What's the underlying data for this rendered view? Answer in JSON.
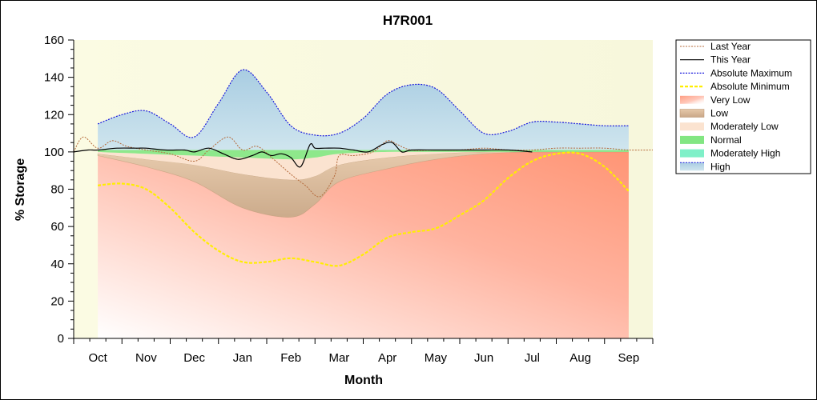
{
  "chart_data": {
    "type": "line",
    "title": "H7R001",
    "xlabel": "Month",
    "ylabel": "% Storage",
    "ylim": [
      0,
      160
    ],
    "yticks": [
      "0",
      "20",
      "40",
      "60",
      "80",
      "100",
      "120",
      "140",
      "160"
    ],
    "categories": [
      "Oct",
      "Nov",
      "Dec",
      "Jan",
      "Feb",
      "Mar",
      "Apr",
      "May",
      "Jun",
      "Jul",
      "Aug",
      "Sep"
    ],
    "x_range": [
      -0.5,
      11.5
    ],
    "legend_position": "right",
    "grid": false,
    "colors": {
      "plot_background": "#fbfbe6",
      "last_year": "#b4693a",
      "this_year": "#000000",
      "absolute_maximum": "#1a1adc",
      "absolute_minimum": "#ffee00",
      "very_low": "#ff9e85",
      "low": "#d2b496",
      "moderately_low": "#fbe3d0",
      "normal": "#82e682",
      "moderately_high": "#7ff0c8",
      "high": "#b4d7ea"
    },
    "series": [
      {
        "name": "Last Year",
        "x": [
          -0.5,
          -0.3,
          0.0,
          0.3,
          0.6,
          1.0,
          1.5,
          2.0,
          2.3,
          2.7,
          3.0,
          3.3,
          3.6,
          4.0,
          4.3,
          4.6,
          4.9,
          5.0,
          5.3,
          5.7,
          6.0,
          6.2,
          6.5,
          7.0,
          7.5,
          8.0,
          8.5,
          9.0,
          9.5,
          10.0,
          10.5,
          11.0,
          11.5
        ],
        "values": [
          100,
          108,
          102,
          106,
          103,
          101,
          99,
          95,
          101,
          108,
          101,
          103,
          97,
          88,
          82,
          76,
          87,
          98,
          98,
          100,
          106,
          104,
          101,
          101,
          101,
          102,
          101,
          101,
          102,
          102,
          102,
          101,
          101
        ]
      },
      {
        "name": "This Year",
        "x": [
          -0.5,
          -0.2,
          0.0,
          0.4,
          0.8,
          1.0,
          1.4,
          1.8,
          2.0,
          2.3,
          2.6,
          2.9,
          3.2,
          3.4,
          3.6,
          3.8,
          4.0,
          4.2,
          4.4,
          4.5,
          4.7,
          5.0,
          5.3,
          5.6,
          5.9,
          6.1,
          6.3,
          6.5,
          7.0,
          7.5,
          8.0,
          8.5,
          9.0
        ],
        "values": [
          100,
          101,
          101,
          102,
          102,
          102,
          101,
          101,
          100,
          102,
          99,
          96,
          98,
          100,
          98,
          99,
          97,
          92,
          104,
          102,
          102,
          102,
          101,
          100,
          104,
          105,
          100,
          101,
          101,
          101,
          101,
          101,
          100
        ]
      },
      {
        "name": "Absolute Maximum",
        "x": [
          0,
          0.5,
          1.0,
          1.5,
          2.0,
          2.5,
          3.0,
          3.5,
          4.0,
          4.5,
          5.0,
          5.5,
          6.0,
          6.5,
          7.0,
          7.5,
          8.0,
          8.5,
          9.0,
          9.5,
          10.0,
          10.5,
          11.0
        ],
        "values": [
          115,
          120,
          122,
          115,
          108,
          126,
          144,
          132,
          114,
          109,
          110,
          118,
          131,
          136,
          134,
          122,
          110,
          111,
          116,
          116,
          115,
          114,
          114
        ]
      },
      {
        "name": "Absolute Minimum",
        "x": [
          0,
          0.5,
          1.0,
          1.5,
          2.0,
          2.5,
          3.0,
          3.5,
          4.0,
          4.5,
          5.0,
          5.5,
          6.0,
          6.5,
          7.0,
          7.5,
          8.0,
          8.5,
          9.0,
          9.5,
          10.0,
          10.5,
          11.0
        ],
        "values": [
          82,
          83,
          80,
          70,
          57,
          47,
          41,
          41,
          43,
          41,
          39,
          45,
          54,
          57,
          59,
          66,
          74,
          86,
          95,
          99,
          99,
          92,
          79
        ]
      }
    ],
    "bands": [
      {
        "name": "Very Low",
        "x": [
          0,
          1,
          2,
          3,
          4,
          4.5,
          5,
          6,
          7,
          8,
          9,
          10,
          11
        ],
        "lower": [
          0,
          0,
          0,
          0,
          0,
          0,
          0,
          0,
          0,
          0,
          0,
          0,
          0
        ],
        "upper": [
          98,
          92,
          84,
          70,
          65,
          72,
          84,
          91,
          96,
          99,
          100,
          100,
          100
        ]
      },
      {
        "name": "Low",
        "x": [
          0,
          1,
          2,
          3,
          4,
          4.5,
          5,
          6,
          7,
          8,
          9,
          10,
          11
        ],
        "lower": [
          98,
          92,
          84,
          70,
          65,
          72,
          84,
          91,
          96,
          99,
          100,
          100,
          100
        ],
        "upper": [
          99,
          96,
          93,
          88,
          85,
          87,
          93,
          97,
          99,
          100,
          100,
          100,
          100
        ]
      },
      {
        "name": "Moderately Low",
        "x": [
          0,
          1,
          2,
          3,
          4,
          4.5,
          5,
          6,
          7,
          8,
          9,
          10,
          11
        ],
        "lower": [
          99,
          96,
          93,
          88,
          85,
          87,
          93,
          97,
          99,
          100,
          100,
          100,
          100
        ],
        "upper": [
          100,
          99,
          98,
          97,
          96,
          97,
          99,
          100,
          100,
          100,
          100,
          100,
          100
        ]
      },
      {
        "name": "Normal",
        "x": [
          0,
          1,
          2,
          3,
          4,
          4.5,
          5,
          6,
          7,
          8,
          9,
          10,
          11
        ],
        "lower": [
          100,
          99,
          98,
          97,
          96,
          97,
          99,
          100,
          100,
          100,
          100,
          100,
          100
        ],
        "upper": [
          101,
          101,
          101,
          101,
          101,
          101,
          101,
          101,
          101,
          101,
          101,
          101,
          101
        ]
      },
      {
        "name": "Moderately High",
        "x": [
          0,
          1,
          2,
          3,
          4,
          4.5,
          5,
          6,
          7,
          8,
          9,
          10,
          11
        ],
        "lower": [
          101,
          101,
          101,
          101,
          101,
          101,
          101,
          101,
          101,
          101,
          101,
          101,
          101
        ],
        "upper": [
          101,
          101,
          101,
          101,
          101,
          101,
          101,
          101,
          101,
          101,
          101,
          101,
          101
        ]
      },
      {
        "name": "High",
        "x": [
          0,
          0.5,
          1.0,
          1.5,
          2.0,
          2.5,
          3.0,
          3.5,
          4.0,
          4.5,
          5.0,
          5.5,
          6.0,
          6.5,
          7.0,
          7.5,
          8.0,
          8.5,
          9.0,
          9.5,
          10.0,
          10.5,
          11.0
        ],
        "lower": [
          101,
          101,
          101,
          101,
          101,
          101,
          101,
          101,
          101,
          101,
          101,
          101,
          101,
          101,
          101,
          101,
          101,
          101,
          101,
          101,
          101,
          101,
          101
        ],
        "upper": [
          115,
          120,
          122,
          115,
          108,
          126,
          144,
          132,
          114,
          109,
          110,
          118,
          131,
          136,
          134,
          122,
          110,
          111,
          116,
          116,
          115,
          114,
          114
        ]
      }
    ],
    "legend": [
      "Last Year",
      "This Year",
      "Absolute Maximum",
      "Absolute Minimum",
      "Very Low",
      "Low",
      "Moderately Low",
      "Normal",
      "Moderately High",
      "High"
    ]
  }
}
